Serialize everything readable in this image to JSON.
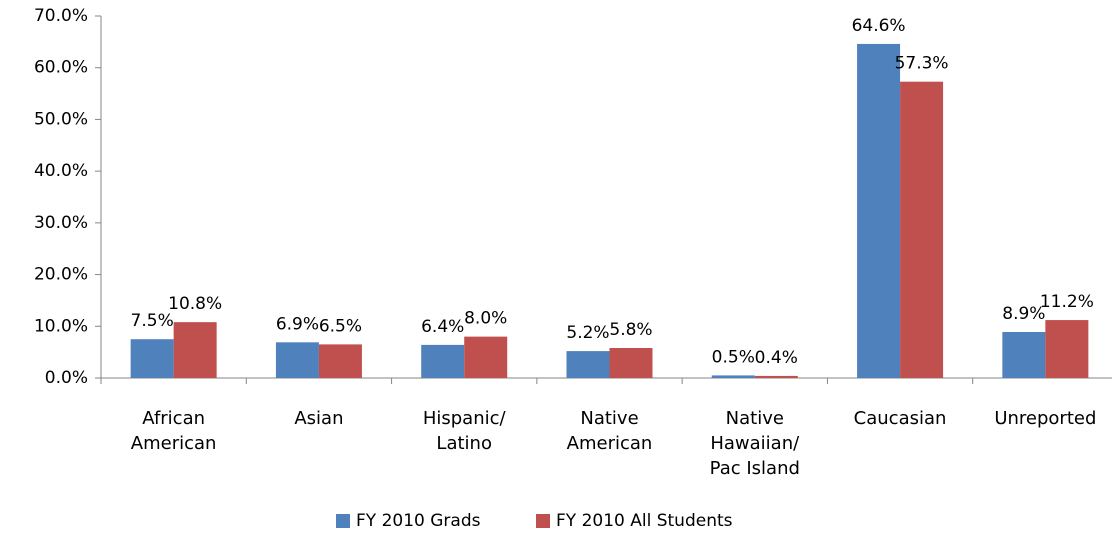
{
  "chart_data": {
    "type": "bar",
    "categories": [
      "African\nAmerican",
      "Asian",
      "Hispanic/\nLatino",
      "Native\nAmerican",
      "Native\nHawaiian/\nPac Island",
      "Caucasian",
      "Unreported"
    ],
    "series": [
      {
        "name": "FY 2010 Grads",
        "color": "#4f81bd",
        "values": [
          7.5,
          6.9,
          6.4,
          5.2,
          0.5,
          64.6,
          8.9
        ],
        "value_labels": [
          "7.5%",
          "6.9%",
          "6.4%",
          "5.2%",
          "0.5%",
          "64.6%",
          "8.9%"
        ]
      },
      {
        "name": "FY 2010 All Students",
        "color": "#c0504d",
        "values": [
          10.8,
          6.5,
          8.0,
          5.8,
          0.4,
          57.3,
          11.2
        ],
        "value_labels": [
          "10.8%",
          "6.5%",
          "8.0%",
          "5.8%",
          "0.4%",
          "57.3%",
          "11.2%"
        ]
      }
    ],
    "ylim": [
      0,
      70
    ],
    "yticks": [
      {
        "value": 0,
        "label": "0.0%"
      },
      {
        "value": 10,
        "label": "10.0%"
      },
      {
        "value": 20,
        "label": "20.0%"
      },
      {
        "value": 30,
        "label": "30.0%"
      },
      {
        "value": 40,
        "label": "40.0%"
      },
      {
        "value": 50,
        "label": "50.0%"
      },
      {
        "value": 60,
        "label": "60.0%"
      },
      {
        "value": 70,
        "label": "70.0%"
      }
    ],
    "legend": "bottom"
  }
}
